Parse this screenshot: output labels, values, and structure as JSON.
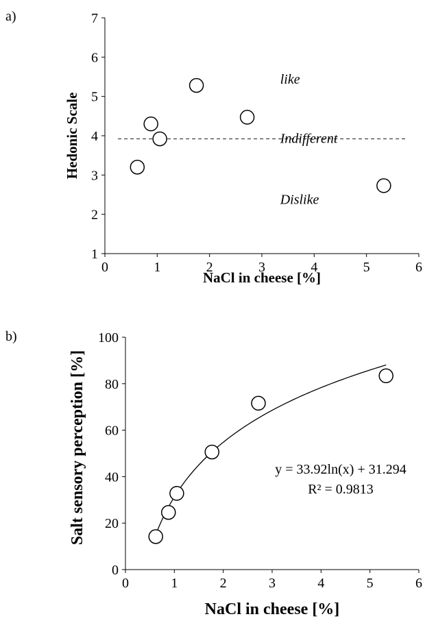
{
  "chart_data": [
    {
      "panel_label": "a)",
      "type": "scatter",
      "xlabel": "NaCl in cheese [%]",
      "ylabel": "Hedonic Scale",
      "xlim": [
        0,
        6
      ],
      "ylim": [
        1,
        7
      ],
      "x_ticks": [
        "0",
        "1",
        "2",
        "3",
        "4",
        "5",
        "6"
      ],
      "y_ticks": [
        "1",
        "2",
        "3",
        "4",
        "5",
        "6",
        "7"
      ],
      "points": [
        {
          "x": 0.62,
          "y": 3.2
        },
        {
          "x": 0.88,
          "y": 4.3
        },
        {
          "x": 1.05,
          "y": 3.92
        },
        {
          "x": 1.75,
          "y": 5.28
        },
        {
          "x": 2.72,
          "y": 4.47
        },
        {
          "x": 5.33,
          "y": 2.73
        }
      ],
      "reference_line": {
        "y": 3.92,
        "x_range": [
          0.25,
          5.75
        ],
        "style": "dashed"
      },
      "annotations": [
        {
          "text": "like",
          "x": 3.35,
          "y": 5.43
        },
        {
          "text": "Indifferent",
          "x": 3.35,
          "y": 3.92
        },
        {
          "text": "Dislike",
          "x": 3.35,
          "y": 2.37
        }
      ],
      "grid": false
    },
    {
      "panel_label": "b)",
      "type": "scatter",
      "xlabel": "NaCl in cheese [%]",
      "ylabel": "Salt sensory perception [%]",
      "xlim": [
        0,
        6
      ],
      "ylim": [
        0,
        100
      ],
      "x_ticks": [
        "0",
        "1",
        "2",
        "3",
        "4",
        "5",
        "6"
      ],
      "y_ticks": [
        "0",
        "20",
        "40",
        "60",
        "80",
        "100"
      ],
      "points": [
        {
          "x": 0.62,
          "y": 14.2
        },
        {
          "x": 0.88,
          "y": 24.6
        },
        {
          "x": 1.05,
          "y": 32.8
        },
        {
          "x": 1.77,
          "y": 50.6
        },
        {
          "x": 2.72,
          "y": 71.6
        },
        {
          "x": 5.33,
          "y": 83.4
        }
      ],
      "trendline": {
        "type": "logarithmic",
        "a": 33.92,
        "b": 31.294,
        "x_range": [
          0.62,
          5.33
        ]
      },
      "equation": "y = 33.92ln(x) + 31.294",
      "r_squared": "R² = 0.9813",
      "grid": false
    }
  ]
}
